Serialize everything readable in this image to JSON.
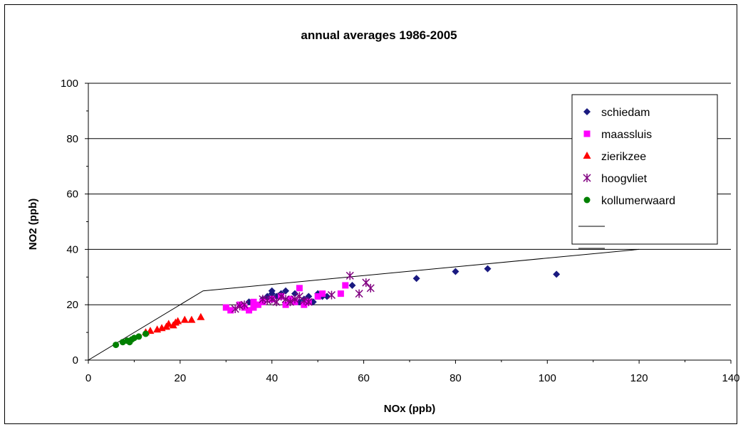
{
  "chart_data": {
    "type": "scatter",
    "title": "annual averages 1986-2005",
    "xlabel": "NOx (ppb)",
    "ylabel": "NO2 (ppb)",
    "xlim": [
      0,
      140
    ],
    "ylim": [
      0,
      100
    ],
    "xticks": [
      0,
      20,
      40,
      60,
      80,
      100,
      120,
      140
    ],
    "yticks": [
      0,
      20,
      40,
      60,
      80,
      100
    ],
    "grid": "horizontal",
    "legend_position": "top-right",
    "series": [
      {
        "name": "schiedam",
        "marker": "diamond",
        "color": "#1a1a80",
        "points": [
          [
            35,
            21
          ],
          [
            38,
            22
          ],
          [
            39,
            23
          ],
          [
            40,
            24
          ],
          [
            40,
            25
          ],
          [
            41,
            23
          ],
          [
            42,
            24
          ],
          [
            43,
            25
          ],
          [
            44,
            22
          ],
          [
            45,
            24
          ],
          [
            46,
            21
          ],
          [
            47,
            22
          ],
          [
            48,
            23
          ],
          [
            49,
            21
          ],
          [
            50,
            24
          ],
          [
            51,
            23
          ],
          [
            52,
            23
          ],
          [
            57.5,
            27
          ],
          [
            71.5,
            29.5
          ],
          [
            80,
            32
          ],
          [
            87,
            33
          ],
          [
            102,
            31
          ]
        ]
      },
      {
        "name": "maassluis",
        "marker": "square",
        "color": "#ff00ff",
        "points": [
          [
            30,
            19
          ],
          [
            31,
            18
          ],
          [
            33,
            20
          ],
          [
            34,
            19
          ],
          [
            35,
            18
          ],
          [
            36,
            19
          ],
          [
            37,
            20
          ],
          [
            38,
            21
          ],
          [
            40,
            22
          ],
          [
            42,
            23
          ],
          [
            43,
            20
          ],
          [
            44,
            22
          ],
          [
            45,
            21
          ],
          [
            46,
            26
          ],
          [
            47,
            20
          ],
          [
            48,
            21
          ],
          [
            50,
            23
          ],
          [
            51,
            24
          ],
          [
            55,
            24
          ],
          [
            56,
            27
          ],
          [
            36,
            21
          ]
        ]
      },
      {
        "name": "zierikzee",
        "marker": "triangle",
        "color": "#ff0000",
        "points": [
          [
            12.5,
            10
          ],
          [
            13.5,
            10.5
          ],
          [
            15,
            11
          ],
          [
            16,
            11.5
          ],
          [
            17,
            12
          ],
          [
            17.5,
            13
          ],
          [
            18.5,
            12.5
          ],
          [
            19,
            13.5
          ],
          [
            19.5,
            14
          ],
          [
            21,
            14.5
          ],
          [
            22.5,
            14.5
          ],
          [
            24.5,
            15.5
          ]
        ]
      },
      {
        "name": "hoogvliet",
        "marker": "asterisk",
        "color": "#800080",
        "points": [
          [
            32,
            18.5
          ],
          [
            33,
            19.5
          ],
          [
            34,
            20
          ],
          [
            38,
            22
          ],
          [
            39,
            21.5
          ],
          [
            40,
            22
          ],
          [
            41,
            21
          ],
          [
            42,
            23
          ],
          [
            43,
            22
          ],
          [
            44,
            21
          ],
          [
            45,
            22
          ],
          [
            46,
            23
          ],
          [
            47,
            21.5
          ],
          [
            53,
            23.5
          ],
          [
            57,
            30.5
          ],
          [
            59,
            24
          ],
          [
            60.5,
            28
          ],
          [
            61.5,
            26
          ],
          [
            48,
            21
          ]
        ]
      },
      {
        "name": "kollumerwaard",
        "marker": "circle",
        "color": "#008000",
        "points": [
          [
            6,
            5.5
          ],
          [
            7.5,
            6.5
          ],
          [
            8.5,
            7
          ],
          [
            9,
            6.5
          ],
          [
            9.5,
            7.5
          ],
          [
            10,
            8
          ],
          [
            11,
            8.5
          ],
          [
            12.5,
            9.5
          ]
        ]
      }
    ],
    "extra_legend_entries": [
      "",
      ""
    ],
    "lines": [
      {
        "color": "#000000",
        "points": [
          [
            0,
            0
          ],
          [
            25,
            25
          ],
          [
            120,
            40
          ]
        ]
      }
    ]
  }
}
